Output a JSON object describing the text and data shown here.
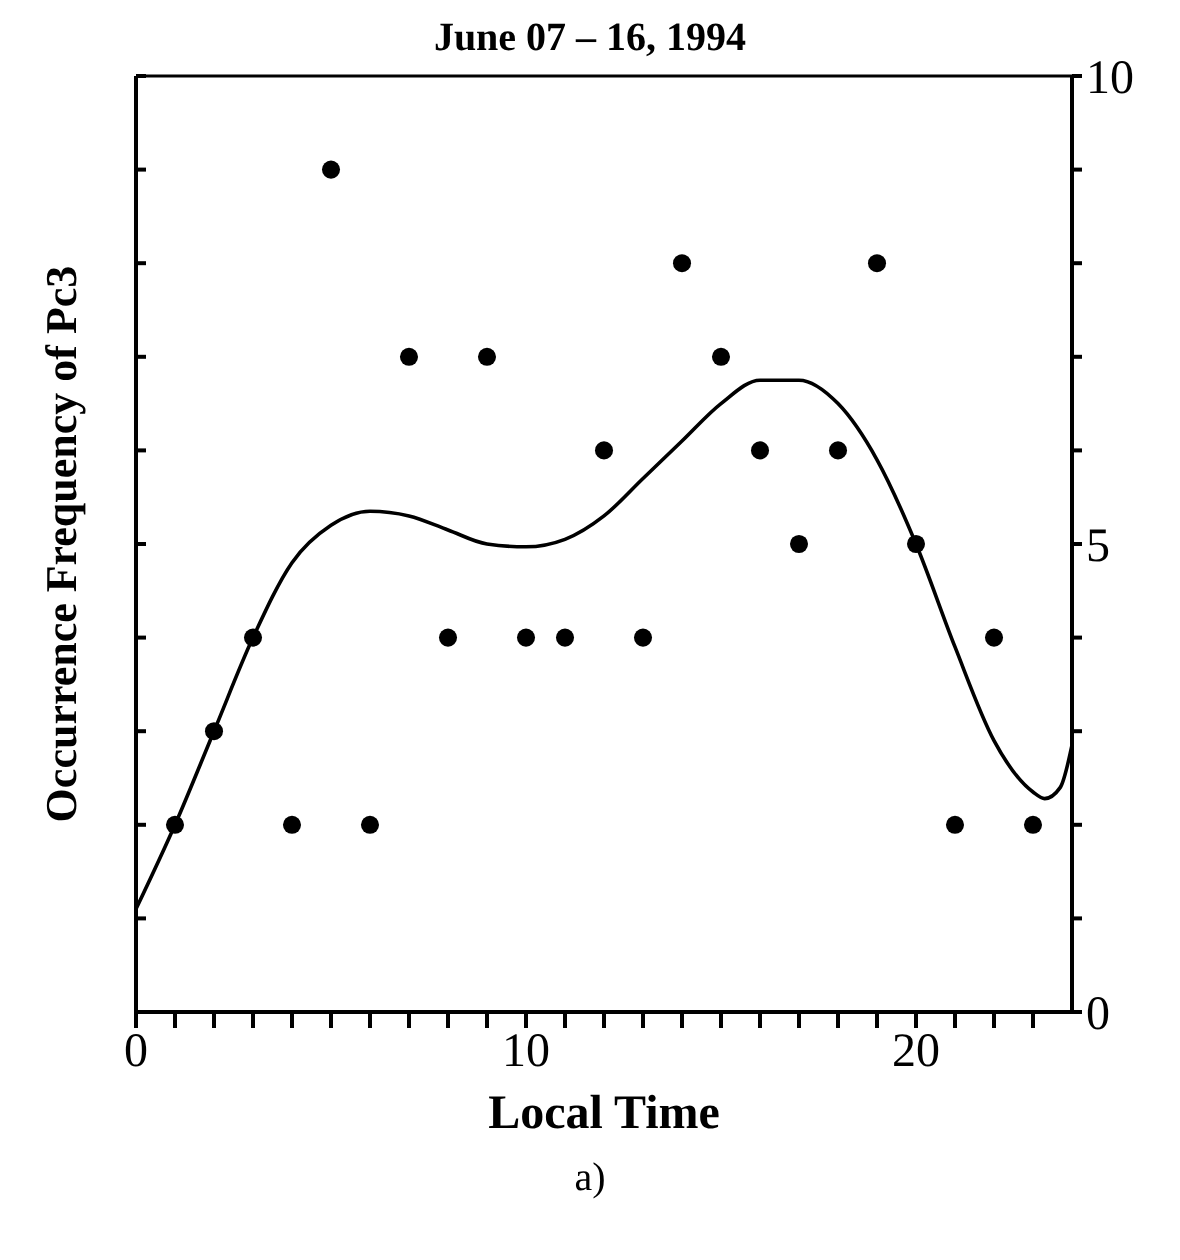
{
  "chart_data": {
    "type": "scatter",
    "title": "June 07 – 16, 1994",
    "xlabel": "Local Time",
    "ylabel": "Occurrence Frequency of Pc3",
    "annotations": [
      "a)"
    ],
    "xlim": [
      0,
      24
    ],
    "xticks": [
      0,
      {
        "value": 1,
        "label": null
      },
      {
        "value": 2,
        "label": null
      },
      {
        "value": 3,
        "label": null
      },
      {
        "value": 4,
        "label": null
      },
      {
        "value": 5,
        "label": null
      },
      {
        "value": 6,
        "label": null
      },
      {
        "value": 7,
        "label": null
      },
      {
        "value": 8,
        "label": null
      },
      {
        "value": 9,
        "label": null
      },
      10,
      {
        "value": 11,
        "label": null
      },
      {
        "value": 12,
        "label": null
      },
      {
        "value": 13,
        "label": null
      },
      {
        "value": 14,
        "label": null
      },
      {
        "value": 15,
        "label": null
      },
      {
        "value": 16,
        "label": null
      },
      {
        "value": 17,
        "label": null
      },
      {
        "value": 18,
        "label": null
      },
      {
        "value": 19,
        "label": null
      },
      20,
      {
        "value": 21,
        "label": null
      },
      {
        "value": 22,
        "label": null
      },
      {
        "value": 23,
        "label": null
      }
    ],
    "ylim": [
      0,
      10
    ],
    "yticks": [
      0,
      {
        "value": 1,
        "label": null
      },
      {
        "value": 2,
        "label": null
      },
      {
        "value": 3,
        "label": null
      },
      {
        "value": 4,
        "label": null
      },
      5,
      {
        "value": 6,
        "label": null
      },
      {
        "value": 7,
        "label": null
      },
      {
        "value": 8,
        "label": null
      },
      {
        "value": 9,
        "label": null
      },
      10
    ],
    "grid": false,
    "legend": false,
    "series": [
      {
        "color": "#000000",
        "marker": "circle",
        "x": [
          1,
          2,
          3,
          4,
          5,
          6,
          7,
          8,
          9,
          10,
          11,
          12,
          13,
          14,
          15,
          16,
          17,
          18,
          19,
          20,
          21,
          22,
          23
        ],
        "values": [
          2,
          3,
          4,
          2,
          9,
          2,
          7,
          4,
          7,
          4,
          4,
          6,
          4,
          8,
          7,
          6,
          5,
          6,
          8,
          5,
          2,
          4,
          2
        ]
      },
      {
        "type": "line",
        "color": "#000000",
        "marker": "none",
        "line_style": "solid",
        "x": [
          0,
          1,
          2,
          3,
          4,
          5,
          6,
          7,
          8,
          9,
          10,
          11,
          12,
          13,
          14,
          15,
          16,
          17,
          18,
          19,
          20,
          21,
          22,
          23,
          23.3,
          23.7,
          24
        ],
        "values": [
          1.1,
          2,
          3,
          4,
          4.8,
          5.2,
          5.35,
          5.3,
          5.15,
          5.0,
          4.97,
          5.05,
          5.3,
          5.7,
          6.1,
          6.5,
          6.75,
          6.75,
          6.5,
          5.9,
          5.0,
          3.9,
          2.9,
          2.35,
          2.28,
          2.4,
          2.85
        ]
      }
    ]
  }
}
